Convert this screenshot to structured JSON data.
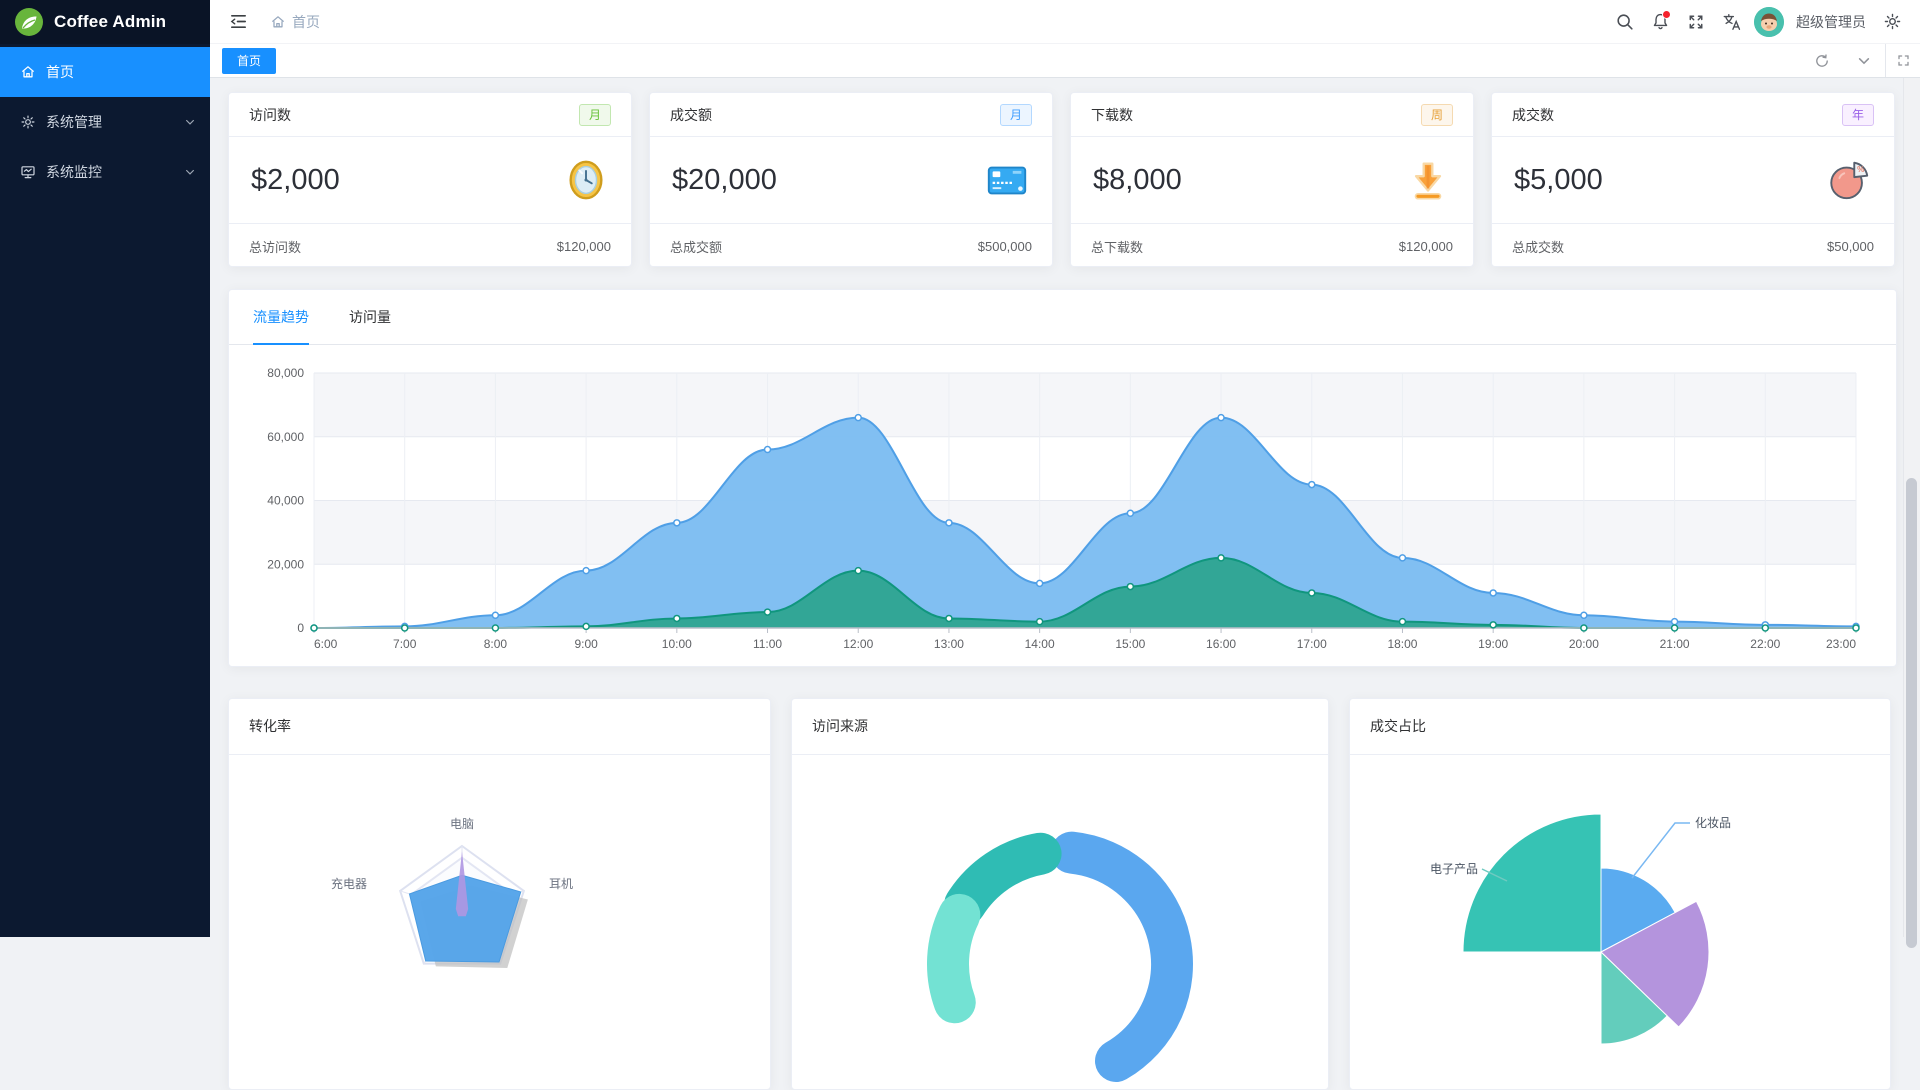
{
  "app": {
    "title": "Coffee Admin"
  },
  "colors": {
    "primary": "#1890ff",
    "sidebar_bg": "#0c1930",
    "content_bg": "#f0f2f5",
    "notification_dot": "#f5222d"
  },
  "sidebar": {
    "items": [
      {
        "key": "home",
        "label": "首页",
        "icon": "home-icon",
        "active": true,
        "expandable": false
      },
      {
        "key": "system-management",
        "label": "系统管理",
        "icon": "gear-icon",
        "active": false,
        "expandable": true
      },
      {
        "key": "system-monitor",
        "label": "系统监控",
        "icon": "monitor-icon",
        "active": false,
        "expandable": true
      }
    ]
  },
  "header": {
    "breadcrumb_home": "首页",
    "username": "超级管理员",
    "icons": [
      "collapse-menu-icon",
      "search-icon",
      "bell-icon",
      "fullscreen-icon",
      "translate-icon",
      "settings-icon"
    ]
  },
  "tabbar": {
    "tabs": [
      {
        "label": "首页",
        "active": true
      }
    ],
    "controls": [
      "refresh-icon",
      "chevron-down-icon",
      "maximize-icon"
    ]
  },
  "stat_cards": [
    {
      "key": "visits",
      "title": "访问数",
      "badge": "月",
      "badge_color": "green",
      "value": "$2,000",
      "icon": "clock-icon",
      "footer_label": "总访问数",
      "footer_value": "$120,000"
    },
    {
      "key": "turnover",
      "title": "成交额",
      "badge": "月",
      "badge_color": "blue",
      "value": "$20,000",
      "icon": "credit-card-icon",
      "footer_label": "总成交额",
      "footer_value": "$500,000"
    },
    {
      "key": "downloads",
      "title": "下载数",
      "badge": "周",
      "badge_color": "orange",
      "value": "$8,000",
      "icon": "download-icon",
      "footer_label": "总下载数",
      "footer_value": "$120,000"
    },
    {
      "key": "deals",
      "title": "成交数",
      "badge": "年",
      "badge_color": "purple",
      "value": "$5,000",
      "icon": "pie-icon",
      "footer_label": "总成交数",
      "footer_value": "$50,000"
    }
  ],
  "trend_card": {
    "tabs": [
      {
        "label": "流量趋势",
        "active": true
      },
      {
        "label": "访问量",
        "active": false
      }
    ]
  },
  "bottom_cards": [
    {
      "title": "转化率"
    },
    {
      "title": "访问来源"
    },
    {
      "title": "成交占比"
    }
  ],
  "chart_data": [
    {
      "type": "area",
      "title": "流量趋势",
      "x": [
        "6:00",
        "7:00",
        "8:00",
        "9:00",
        "10:00",
        "11:00",
        "12:00",
        "13:00",
        "14:00",
        "15:00",
        "16:00",
        "17:00",
        "18:00",
        "19:00",
        "20:00",
        "21:00",
        "22:00",
        "23:00"
      ],
      "ylim": [
        0,
        80000
      ],
      "yticks": [
        "0",
        "20,000",
        "40,000",
        "60,000",
        "80,000"
      ],
      "grid": true,
      "split_area_colors": [
        "#f5f6f9",
        "#ffffff"
      ],
      "series": [
        {
          "name": "series-blue",
          "line": "#4f9fe6",
          "fill": "#7cbcf1",
          "values": [
            0,
            500,
            4000,
            18000,
            33000,
            56000,
            66000,
            33000,
            14000,
            36000,
            66000,
            45000,
            22000,
            11000,
            4000,
            2000,
            1000,
            500
          ]
        },
        {
          "name": "series-green",
          "line": "#10967e",
          "fill": "#2fa492",
          "values": [
            0,
            0,
            0,
            500,
            3000,
            5000,
            18000,
            3000,
            2000,
            13000,
            22000,
            11000,
            2000,
            1000,
            0,
            0,
            0,
            0
          ]
        }
      ]
    },
    {
      "type": "radar",
      "title": "转化率",
      "axes_count": 5,
      "indicators_visible": [
        "电脑",
        "耳机",
        "充电器"
      ],
      "max": 1,
      "series": [
        {
          "name": "shadow",
          "color": "#bdbdbd",
          "values": [
            0.5,
            0.92,
            0.95,
            0.92,
            0.82
          ]
        },
        {
          "name": "primary",
          "color": "#55a4e9",
          "values": [
            0.55,
            0.95,
            0.97,
            0.95,
            0.85
          ]
        },
        {
          "name": "accent",
          "color": "#af97e2",
          "values": [
            0.92,
            0.1,
            0.1,
            0.1,
            0.1
          ]
        }
      ]
    },
    {
      "type": "donut",
      "title": "访问来源",
      "segments": [
        {
          "color": "#5aa7ef",
          "start_deg": -84,
          "end_deg": 60
        },
        {
          "color": "#2fbcb4",
          "start_deg": -148,
          "end_deg": -100
        },
        {
          "color": "#73e2d3",
          "start_deg": -200,
          "end_deg": -154
        }
      ]
    },
    {
      "type": "pie-rose",
      "title": "成交占比",
      "labels_visible": [
        "化妆品",
        "电子产品"
      ],
      "segments": [
        {
          "label": "电子产品",
          "color": "#36c3b4",
          "start_deg": 180,
          "end_deg": 270,
          "radius": 138
        },
        {
          "label": "化妆品",
          "color": "#5aabf0",
          "start_deg": 270,
          "end_deg": 332,
          "radius": 84
        },
        {
          "label": "",
          "color": "#b494dd",
          "start_deg": 332,
          "end_deg": 404,
          "radius": 108
        },
        {
          "label": "",
          "color": "#63cdbc",
          "start_deg": 404,
          "end_deg": 450,
          "radius": 92
        }
      ]
    }
  ]
}
